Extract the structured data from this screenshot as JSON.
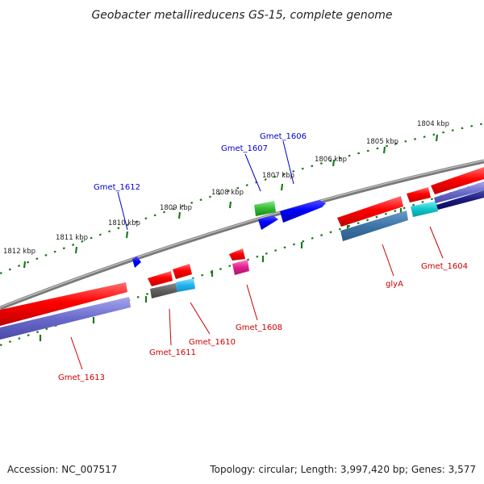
{
  "title": "Geobacter metallireducens GS-15, complete genome",
  "footer": {
    "accession": "Accession: NC_007517",
    "topology": "Topology: circular; Length: 3,997,420 bp; Genes: 3,577"
  },
  "scale_labels": [
    "1804 kbp",
    "1805 kbp",
    "1806 kbp",
    "1807 kbp",
    "1808 kbp",
    "1809 kbp",
    "1810 kbp",
    "1811 kbp",
    "1812 kbp"
  ],
  "genes": [
    {
      "name": "Gmet_1606",
      "strand": "forward",
      "color": "#0000cc"
    },
    {
      "name": "Gmet_1607",
      "strand": "forward",
      "color": "#0000cc"
    },
    {
      "name": "Gmet_1612",
      "strand": "forward",
      "color": "#0000cc"
    },
    {
      "name": "Gmet_1613",
      "strand": "reverse",
      "color": "#cc0000"
    },
    {
      "name": "Gmet_1611",
      "strand": "reverse",
      "color": "#cc0000"
    },
    {
      "name": "Gmet_1610",
      "strand": "reverse",
      "color": "#cc0000"
    },
    {
      "name": "Gmet_1608",
      "strand": "reverse",
      "color": "#cc0000"
    },
    {
      "name": "glyA",
      "strand": "reverse",
      "color": "#cc0000"
    },
    {
      "name": "Gmet_1604",
      "strand": "reverse",
      "color": "#cc0000"
    }
  ],
  "colors": {
    "backbone": "#8a8a8a",
    "ticks": "#1a7a1a",
    "forward_label": "#0000cc",
    "reverse_label": "#cc0000"
  }
}
